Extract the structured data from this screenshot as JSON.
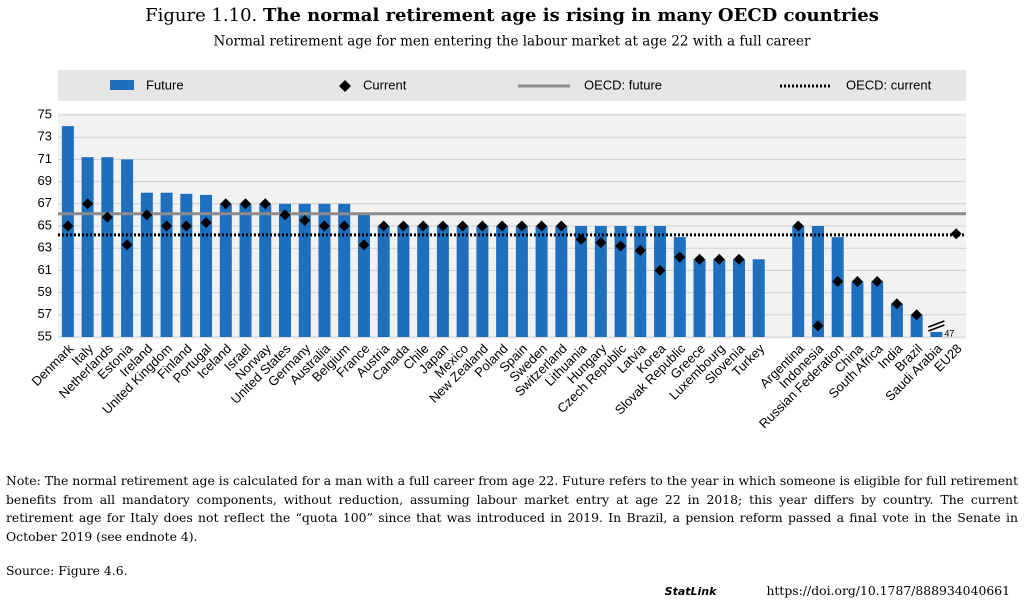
{
  "chart_data": {
    "type": "bar",
    "title_prefix": "Figure 1.10.",
    "title": "The normal retirement age is rising in many OECD countries",
    "subtitle": "Normal retirement age for men entering the labour market at age 22 with a full career",
    "categories": [
      "Denmark",
      "Italy",
      "Netherlands",
      "Estonia",
      "Ireland",
      "United Kingdom",
      "Finland",
      "Portugal",
      "Iceland",
      "Israel",
      "Norway",
      "United States",
      "Germany",
      "Australia",
      "Belgium",
      "France",
      "Austria",
      "Canada",
      "Chile",
      "Japan",
      "Mexico",
      "New Zealand",
      "Poland",
      "Spain",
      "Sweden",
      "Switzerland",
      "Lithuania",
      "Hungary",
      "Czech Republic",
      "Latvia",
      "Korea",
      "Slovak Republic",
      "Greece",
      "Luxembourg",
      "Slovenia",
      "Turkey",
      null,
      "Argentina",
      "Indonesia",
      "Russian Federation",
      "China",
      "South Africa",
      "India",
      "Brazil",
      "Saudi Arabia",
      "EU28"
    ],
    "series": [
      {
        "name": "Future",
        "color": "#1f6fbf",
        "marker": "bar",
        "values": [
          74,
          71.2,
          71.2,
          71,
          68,
          68,
          67.9,
          67.8,
          67,
          67,
          67,
          67,
          67,
          67,
          67,
          66,
          65,
          65,
          65,
          65,
          65,
          65,
          65,
          65,
          65,
          65,
          65,
          65,
          65,
          65,
          65,
          64,
          62,
          62,
          62,
          62,
          null,
          65,
          65,
          64,
          60,
          60,
          58,
          57,
          47,
          null
        ],
        "value_labels": [
          null,
          null,
          null,
          null,
          null,
          null,
          null,
          null,
          null,
          null,
          null,
          null,
          null,
          null,
          null,
          null,
          null,
          null,
          null,
          null,
          null,
          null,
          null,
          null,
          null,
          null,
          null,
          null,
          null,
          null,
          null,
          null,
          null,
          null,
          null,
          null,
          null,
          null,
          null,
          null,
          null,
          null,
          null,
          null,
          "47",
          null
        ]
      },
      {
        "name": "Current",
        "color": "#000000",
        "marker": "diamond",
        "values": [
          65,
          67,
          65.8,
          63.3,
          66,
          65,
          65,
          65.3,
          67,
          67,
          67,
          66,
          65.5,
          65,
          65,
          63.3,
          65,
          65,
          65,
          65,
          65,
          65,
          65,
          65,
          65,
          65,
          63.8,
          63.5,
          63.2,
          62.8,
          61,
          62.2,
          62,
          62,
          62,
          null,
          null,
          65,
          56,
          60,
          60,
          60,
          58,
          57,
          null,
          64.3
        ]
      }
    ],
    "reference_lines": [
      {
        "name": "OECD: future",
        "value": 66.1,
        "color": "#8c8c8c",
        "style": "solid"
      },
      {
        "name": "OECD: current",
        "value": 64.2,
        "color": "#000000",
        "style": "dotted"
      }
    ],
    "ylim": [
      55,
      75
    ],
    "yticks": [
      55,
      57,
      59,
      61,
      63,
      65,
      67,
      69,
      71,
      73,
      75
    ],
    "grid": true,
    "note": "Note: The normal retirement age is calculated for a man with a full career from age 22. Future refers to the year in which someone is eligible for full retirement benefits from all mandatory components, without reduction, assuming labour market entry at age 22 in 2018; this year differs by country. The current retirement age for Italy does not reflect the “quota 100” since that was introduced in 2019. In Brazil, a pension reform passed a final vote in the Senate in October 2019 (see endnote 4).",
    "source": "Source: Figure 4.6.",
    "statlink_label": "StatLink",
    "statlink_url": "https://doi.org/10.1787/888934040661"
  }
}
